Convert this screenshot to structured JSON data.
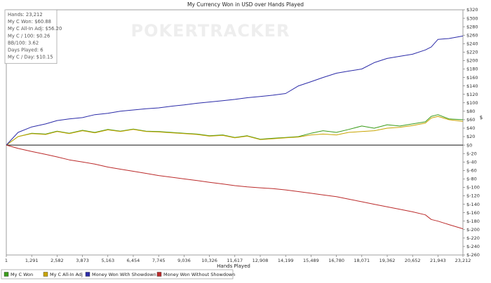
{
  "chart_data": {
    "type": "line",
    "title": "My Currency Won in USD over Hands Played",
    "xlabel": "Hands Played",
    "ylabel": "$",
    "xlim": [
      1,
      23212
    ],
    "ylim": [
      -260,
      320
    ],
    "x_ticks": [
      1,
      1291,
      2582,
      3873,
      5163,
      6454,
      7745,
      9036,
      10326,
      11617,
      12908,
      14199,
      15489,
      16780,
      18071,
      19362,
      20652,
      21943,
      23212
    ],
    "y_ticks": [
      -260,
      -240,
      -220,
      -200,
      -180,
      -160,
      -140,
      -120,
      -100,
      -80,
      -60,
      -40,
      -20,
      0,
      20,
      40,
      60,
      80,
      100,
      120,
      140,
      160,
      180,
      200,
      220,
      240,
      260,
      280,
      300,
      320
    ],
    "grid": false,
    "legend_position": "bottom",
    "watermark": "POKERTRACKER",
    "stats": [
      "Hands: 23,212",
      "My C Won: $60.88",
      "My C All-In Adj: $56.20",
      "My C / 100: $0.26",
      "BB/100: 3.62",
      "Days Played: 6",
      "My C / Day: $10.15"
    ],
    "series": [
      {
        "name": "My C Won",
        "color": "#3a9c1a",
        "x": [
          1,
          600,
          1291,
          2000,
          2582,
          3200,
          3873,
          4500,
          5163,
          5800,
          6454,
          7100,
          7745,
          8400,
          9036,
          9700,
          10326,
          11000,
          11617,
          12250,
          12908,
          13550,
          14199,
          14850,
          15489,
          16100,
          16780,
          17400,
          18071,
          18700,
          19362,
          20000,
          20652,
          21300,
          21600,
          21943,
          22500,
          23212
        ],
        "y": [
          0,
          20,
          28,
          26,
          33,
          28,
          35,
          30,
          37,
          33,
          38,
          33,
          32,
          30,
          28,
          26,
          22,
          24,
          18,
          22,
          14,
          16,
          18,
          20,
          28,
          34,
          30,
          37,
          45,
          40,
          48,
          45,
          50,
          55,
          68,
          72,
          62,
          60
        ]
      },
      {
        "name": "My C All-In Adj",
        "color": "#c8a400",
        "x": [
          1,
          600,
          1291,
          2000,
          2582,
          3200,
          3873,
          4500,
          5163,
          5800,
          6454,
          7100,
          7745,
          8400,
          9036,
          9700,
          10326,
          11000,
          11617,
          12250,
          12908,
          13550,
          14199,
          14850,
          15489,
          16100,
          16780,
          17400,
          18071,
          18700,
          19362,
          20000,
          20652,
          21300,
          21600,
          21943,
          22500,
          23212
        ],
        "y": [
          0,
          20,
          27,
          25,
          32,
          27,
          34,
          29,
          36,
          32,
          37,
          32,
          31,
          29,
          27,
          25,
          21,
          23,
          17,
          21,
          13,
          15,
          17,
          19,
          24,
          26,
          24,
          30,
          32,
          34,
          40,
          42,
          46,
          52,
          64,
          68,
          60,
          56
        ]
      },
      {
        "name": "Money Won With Showdown",
        "color": "#2b2ba8",
        "x": [
          1,
          600,
          1291,
          2000,
          2582,
          3200,
          3873,
          4500,
          5163,
          5800,
          6454,
          7100,
          7745,
          8400,
          9036,
          9700,
          10326,
          11000,
          11617,
          12250,
          12908,
          13550,
          14199,
          14850,
          15489,
          16100,
          16780,
          17400,
          18071,
          18700,
          19362,
          20000,
          20652,
          21300,
          21600,
          21943,
          22500,
          23212
        ],
        "y": [
          0,
          30,
          43,
          50,
          58,
          62,
          65,
          72,
          75,
          80,
          83,
          86,
          88,
          92,
          95,
          99,
          102,
          105,
          108,
          112,
          115,
          118,
          122,
          140,
          150,
          160,
          170,
          175,
          180,
          195,
          205,
          210,
          215,
          225,
          232,
          250,
          252,
          258
        ]
      },
      {
        "name": "Money Won Without Showdown",
        "color": "#bb2b2b",
        "x": [
          1,
          600,
          1291,
          2000,
          2582,
          3200,
          3873,
          4500,
          5163,
          5800,
          6454,
          7100,
          7745,
          8400,
          9036,
          9700,
          10326,
          11000,
          11617,
          12250,
          12908,
          13550,
          14199,
          14850,
          15489,
          16100,
          16780,
          17400,
          18071,
          18700,
          19362,
          20000,
          20652,
          21300,
          21600,
          21943,
          22500,
          23212
        ],
        "y": [
          0,
          -8,
          -15,
          -22,
          -28,
          -35,
          -40,
          -45,
          -52,
          -57,
          -62,
          -67,
          -72,
          -76,
          -80,
          -84,
          -88,
          -92,
          -96,
          -99,
          -101,
          -103,
          -106,
          -110,
          -114,
          -118,
          -122,
          -128,
          -134,
          -140,
          -146,
          -152,
          -158,
          -165,
          -176,
          -180,
          -188,
          -198
        ]
      }
    ]
  }
}
